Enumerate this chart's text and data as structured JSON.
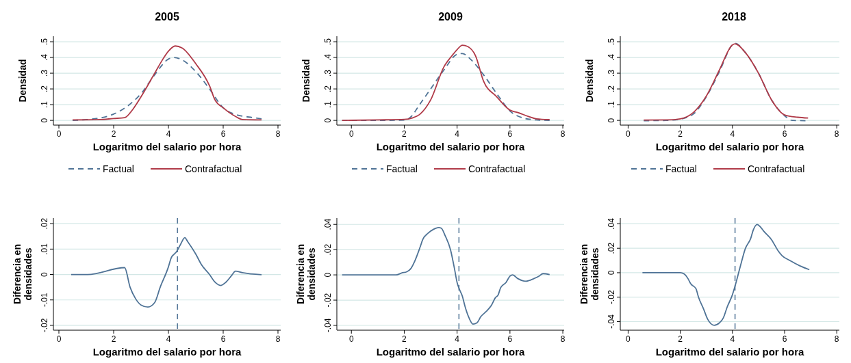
{
  "chart_data": [
    {
      "type": "line",
      "title": "2005",
      "xlabel": "Logaritmo del salario por hora",
      "ylabel": "Densidad",
      "xlim": [
        -0.2,
        8.1
      ],
      "xticks": [
        0,
        2,
        4,
        6,
        8
      ],
      "ylim": [
        -0.03,
        0.535
      ],
      "yticks": [
        {
          "value": 0,
          "label": "0"
        },
        {
          "value": 0.1,
          "label": ".1"
        },
        {
          "value": 0.2,
          "label": ".2"
        },
        {
          "value": 0.3,
          "label": ".3"
        },
        {
          "value": 0.4,
          "label": ".4"
        },
        {
          "value": 0.5,
          "label": ".5"
        }
      ],
      "grid": "y",
      "legend": "bottom",
      "series": [
        {
          "name": "Factual",
          "color": "#4f7396",
          "line_style": "dashed",
          "x": [
            0.5,
            1.5,
            2,
            2.5,
            3,
            3.5,
            4,
            4.2,
            4.5,
            5,
            5.5,
            6,
            6.5,
            7,
            7.4
          ],
          "values": [
            0,
            0.015,
            0.04,
            0.09,
            0.17,
            0.29,
            0.39,
            0.4,
            0.385,
            0.31,
            0.2,
            0.08,
            0.035,
            0.02,
            0.01
          ]
        },
        {
          "name": "Contrafactual",
          "color": "#b03a48",
          "line_style": "solid",
          "x": [
            0.5,
            1.5,
            2,
            2.4,
            2.7,
            3,
            3.5,
            3.8,
            4,
            4.25,
            4.5,
            5,
            5.5,
            5.7,
            6,
            6.5,
            6.7,
            7.4
          ],
          "values": [
            0.003,
            0.005,
            0.012,
            0.017,
            0.07,
            0.15,
            0.3,
            0.39,
            0.44,
            0.473,
            0.46,
            0.36,
            0.22,
            0.13,
            0.08,
            0.02,
            0.005,
            0.003
          ]
        }
      ]
    },
    {
      "type": "line",
      "title": "2009",
      "xlabel": "Logaritmo del salario por hora",
      "ylabel": "Densidad",
      "xlim": [
        -0.55,
        8.05
      ],
      "xticks": [
        0,
        2,
        4,
        6,
        8
      ],
      "ylim": [
        -0.03,
        0.535
      ],
      "yticks": [
        {
          "value": 0,
          "label": "0"
        },
        {
          "value": 0.1,
          "label": ".1"
        },
        {
          "value": 0.2,
          "label": ".2"
        },
        {
          "value": 0.3,
          "label": ".3"
        },
        {
          "value": 0.4,
          "label": ".4"
        },
        {
          "value": 0.5,
          "label": ".5"
        }
      ],
      "grid": "y",
      "legend": "bottom",
      "series": [
        {
          "name": "Factual",
          "color": "#4f7396",
          "line_style": "dashed",
          "x": [
            -0.35,
            1,
            2,
            2.3,
            2.5,
            3,
            3.5,
            4,
            4.2,
            4.5,
            5,
            5.5,
            6,
            6.5,
            7,
            7.5
          ],
          "values": [
            0,
            0,
            0.002,
            0.03,
            0.08,
            0.2,
            0.32,
            0.42,
            0.425,
            0.39,
            0.29,
            0.17,
            0.06,
            0.015,
            0.003,
            0
          ]
        },
        {
          "name": "Contrafactual",
          "color": "#b03a48",
          "line_style": "solid",
          "x": [
            -0.35,
            1,
            2,
            2.3,
            2.6,
            3,
            3.5,
            3.8,
            4,
            4.2,
            4.4,
            4.7,
            5,
            5.5,
            6,
            6.3,
            6.7,
            7,
            7.5
          ],
          "values": [
            0,
            0.003,
            0.006,
            0.015,
            0.04,
            0.13,
            0.34,
            0.41,
            0.45,
            0.478,
            0.47,
            0.41,
            0.25,
            0.15,
            0.065,
            0.05,
            0.025,
            0.01,
            0.005
          ]
        }
      ]
    },
    {
      "type": "line",
      "title": "2018",
      "xlabel": "Logaritmo del salario por hora",
      "ylabel": "Densidad",
      "xlim": [
        -0.3,
        8.1
      ],
      "xticks": [
        0,
        2,
        4,
        6,
        8
      ],
      "ylim": [
        -0.03,
        0.535
      ],
      "yticks": [
        {
          "value": 0,
          "label": "0"
        },
        {
          "value": 0.1,
          "label": ".1"
        },
        {
          "value": 0.2,
          "label": ".2"
        },
        {
          "value": 0.3,
          "label": ".3"
        },
        {
          "value": 0.4,
          "label": ".4"
        },
        {
          "value": 0.5,
          "label": ".5"
        }
      ],
      "grid": "y",
      "legend": "bottom",
      "series": [
        {
          "name": "Factual",
          "color": "#4f7396",
          "line_style": "dashed",
          "x": [
            0.6,
            1.5,
            2,
            2.5,
            3,
            3.5,
            4,
            4.1,
            4.5,
            5,
            5.5,
            6,
            6.3,
            6.8
          ],
          "values": [
            -0.002,
            0,
            0.008,
            0.04,
            0.15,
            0.31,
            0.48,
            0.49,
            0.43,
            0.3,
            0.13,
            0.03,
            0,
            -0.002
          ]
        },
        {
          "name": "Contrafactual",
          "color": "#b03a48",
          "line_style": "solid",
          "x": [
            0.6,
            1.5,
            2,
            2.5,
            3,
            3.5,
            4,
            4.1,
            4.5,
            5,
            5.5,
            6,
            6.5,
            6.9
          ],
          "values": [
            0.002,
            0.003,
            0.01,
            0.05,
            0.155,
            0.32,
            0.48,
            0.487,
            0.43,
            0.3,
            0.13,
            0.035,
            0.02,
            0.015
          ]
        }
      ]
    },
    {
      "type": "line",
      "xlabel": "Logaritmo del salario por hora",
      "ylabel": "Diferencia en densidades",
      "xlim": [
        -0.2,
        8.1
      ],
      "xticks": [
        0,
        2,
        4,
        6,
        8
      ],
      "ylim": [
        -0.0219,
        0.0222
      ],
      "yticks": [
        {
          "value": -0.02,
          "label": "-.02"
        },
        {
          "value": -0.01,
          "label": "-.01"
        },
        {
          "value": 0,
          "label": "0"
        },
        {
          "value": 0.01,
          "label": ".01"
        },
        {
          "value": 0.02,
          "label": ".02"
        }
      ],
      "grid": "y",
      "ref_lines": [
        {
          "axis": "x",
          "value": 4.33,
          "color": "#4f7396",
          "line_style": "dashed"
        }
      ],
      "series": [
        {
          "color": "#4f7396",
          "x": [
            0.45,
            1.05,
            2.4,
            2.6,
            2.8,
            3.0,
            3.25,
            3.5,
            3.7,
            4.0,
            4.1,
            4.3,
            4.45,
            4.6,
            4.7,
            5.0,
            5.2,
            5.5,
            5.7,
            5.9,
            6.1,
            6.3,
            6.45,
            6.7,
            7.4
          ],
          "values": [
            0,
            0,
            0.0027,
            -0.005,
            -0.0095,
            -0.012,
            -0.0128,
            -0.011,
            -0.005,
            0.003,
            0.0065,
            0.009,
            0.012,
            0.0145,
            0.013,
            0.008,
            0.004,
            0,
            -0.003,
            -0.0043,
            -0.003,
            -0.0005,
            0.0013,
            0.0007,
            -0.0001
          ]
        }
      ]
    },
    {
      "type": "line",
      "xlabel": "Logaritmo del salario por hora",
      "ylabel": "Diferencia en densidades",
      "xlim": [
        -0.55,
        8.05
      ],
      "xticks": [
        0,
        2,
        4,
        6,
        8
      ],
      "ylim": [
        -0.0438,
        0.045
      ],
      "yticks": [
        {
          "value": -0.04,
          "label": "-.04"
        },
        {
          "value": -0.02,
          "label": "-.02"
        },
        {
          "value": 0,
          "label": "0"
        },
        {
          "value": 0.02,
          "label": ".02"
        },
        {
          "value": 0.04,
          "label": ".04"
        }
      ],
      "grid": "y",
      "ref_lines": [
        {
          "axis": "x",
          "value": 4.07,
          "color": "#4f7396",
          "line_style": "dashed"
        }
      ],
      "series": [
        {
          "color": "#4f7396",
          "x": [
            -0.35,
            1.7,
            1.9,
            2.1,
            2.25,
            2.4,
            2.6,
            2.7,
            2.9,
            3.1,
            3.3,
            3.4,
            3.55,
            3.75,
            3.9,
            4.0,
            4.1,
            4.2,
            4.3,
            4.45,
            4.6,
            4.75,
            4.9,
            5.1,
            5.3,
            5.45,
            5.55,
            5.65,
            5.85,
            6.0,
            6.1,
            6.3,
            6.6,
            6.9,
            7.1,
            7.25,
            7.5
          ],
          "values": [
            0,
            0,
            0.0015,
            0.0025,
            0.005,
            0.011,
            0.022,
            0.028,
            0.033,
            0.036,
            0.0375,
            0.037,
            0.031,
            0.02,
            0.005,
            -0.006,
            -0.012,
            -0.017,
            -0.025,
            -0.034,
            -0.039,
            -0.038,
            -0.033,
            -0.029,
            -0.024,
            -0.018,
            -0.016,
            -0.01,
            -0.006,
            -0.001,
            0,
            -0.003,
            -0.005,
            -0.003,
            -0.001,
            0.001,
            0.0003
          ]
        }
      ]
    },
    {
      "type": "line",
      "xlabel": "Logaritmo del salario por hora",
      "ylabel": "Diferencia en densidades",
      "xlim": [
        -0.3,
        8.1
      ],
      "xticks": [
        0,
        2,
        4,
        6,
        8
      ],
      "ylim": [
        -0.047,
        0.0447
      ],
      "yticks": [
        {
          "value": -0.04,
          "label": "-.04"
        },
        {
          "value": -0.02,
          "label": "-.02"
        },
        {
          "value": 0,
          "label": "0"
        },
        {
          "value": 0.02,
          "label": ".02"
        },
        {
          "value": 0.04,
          "label": ".04"
        }
      ],
      "grid": "y",
      "ref_lines": [
        {
          "axis": "x",
          "value": 4.1,
          "color": "#4f7396",
          "line_style": "dashed"
        }
      ],
      "series": [
        {
          "color": "#4f7396",
          "x": [
            0.55,
            2.0,
            2.15,
            2.3,
            2.4,
            2.6,
            2.7,
            2.9,
            3.05,
            3.3,
            3.5,
            3.65,
            3.8,
            4.0,
            4.1,
            4.3,
            4.5,
            4.7,
            4.8,
            4.95,
            5.05,
            5.2,
            5.5,
            5.75,
            5.9,
            6.2,
            6.6,
            6.95
          ],
          "values": [
            0,
            0,
            -0.001,
            -0.005,
            -0.009,
            -0.013,
            -0.02,
            -0.03,
            -0.038,
            -0.043,
            -0.041,
            -0.037,
            -0.028,
            -0.018,
            -0.011,
            0.005,
            0.02,
            0.028,
            0.035,
            0.0395,
            0.038,
            0.034,
            0.027,
            0.018,
            0.014,
            0.01,
            0.0055,
            0.0025
          ]
        }
      ]
    }
  ]
}
